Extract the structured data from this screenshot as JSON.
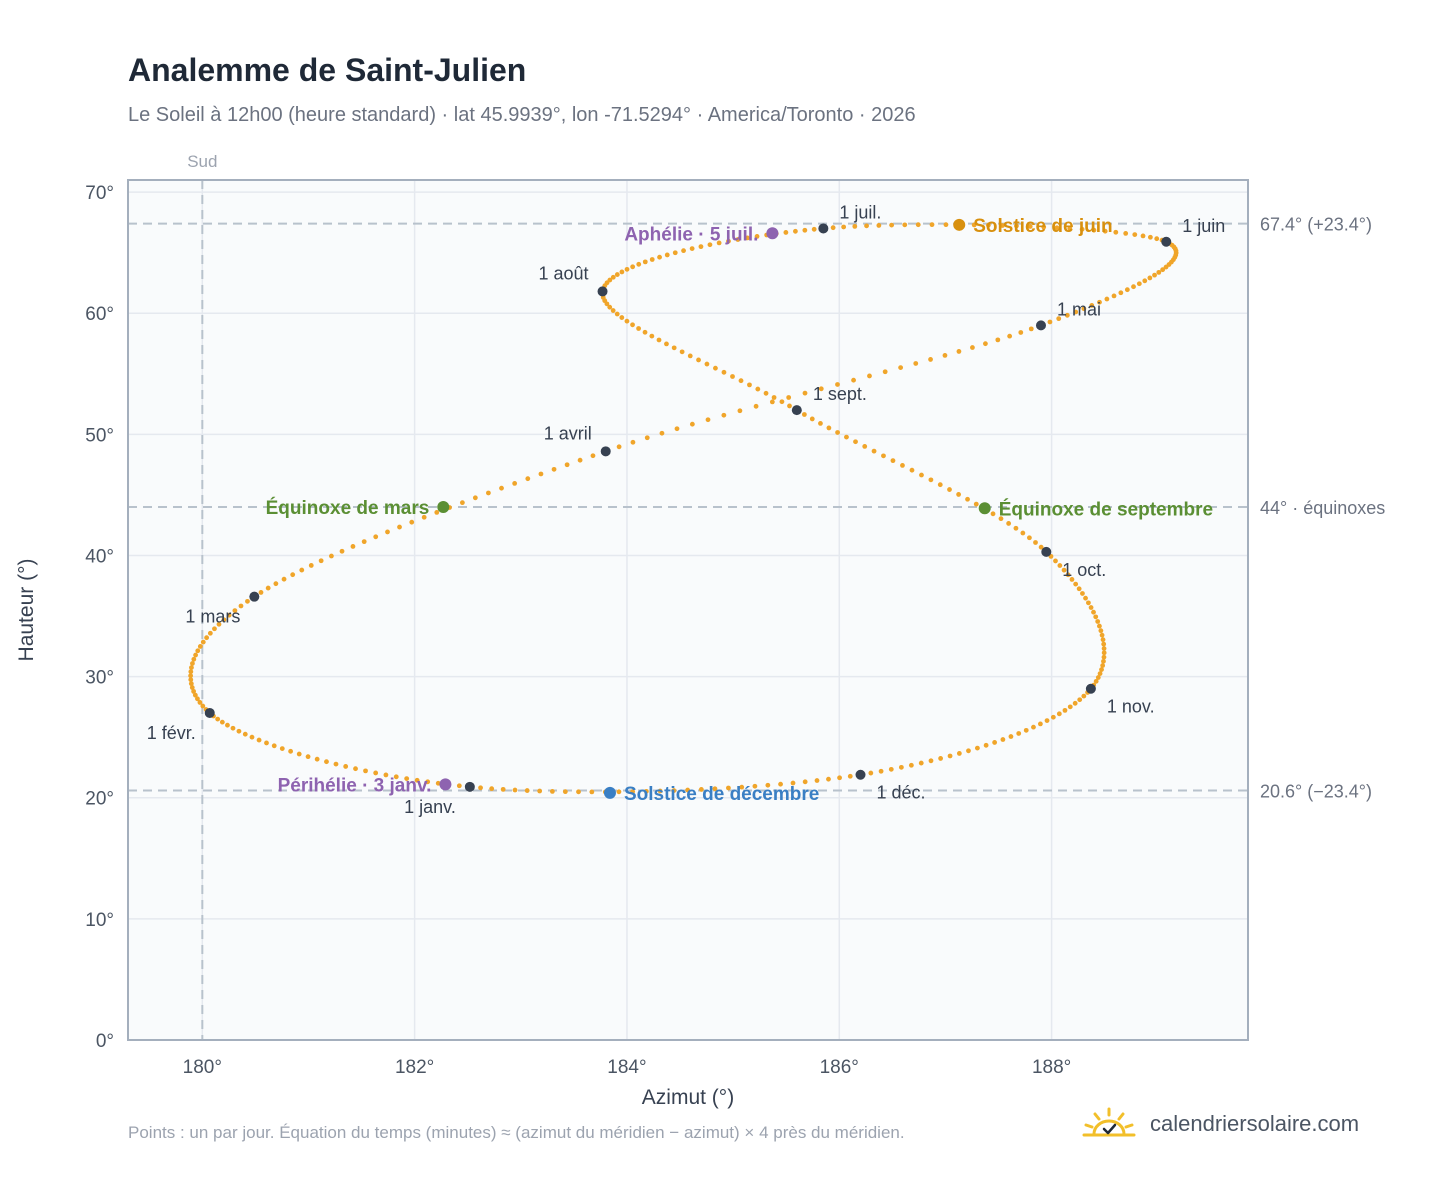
{
  "title": "Analemme de Saint-Julien",
  "subtitle": "Le Soleil à 12h00 (heure standard) · lat 45.9939°, lon -71.5294° · America/Toronto · 2026",
  "footnote": "Points : un par jour. Équation du temps (minutes) ≈ (azimut du méridien − azimut) × 4 près du méridien.",
  "brand": "calendriersolaire.com",
  "colors": {
    "curve": "#f0a52a",
    "month_marker": "#374151",
    "solstice_june": "#d8900e",
    "solstice_december": "#3a7fc4",
    "equinox": "#5b8f34",
    "apsis": "#8e63b0",
    "grid": "#e5e9ef",
    "reference": "#b8c2cc",
    "plot_bg": "#f9fbfc",
    "plot_border": "#a4afbd"
  },
  "chart_data": {
    "type": "scatter",
    "xlabel": "Azimut (°)",
    "ylabel": "Hauteur (°)",
    "xlim": [
      179.3,
      189.85
    ],
    "ylim": [
      0,
      71
    ],
    "x_ticks": [
      180,
      182,
      184,
      186,
      188
    ],
    "y_ticks": [
      0,
      10,
      20,
      30,
      40,
      50,
      60,
      70
    ],
    "x_tick_labels": [
      "180°",
      "182°",
      "184°",
      "186°",
      "188°"
    ],
    "y_tick_labels": [
      "0°",
      "10°",
      "20°",
      "30°",
      "40°",
      "50°",
      "60°",
      "70°"
    ],
    "grid": true,
    "south_line": {
      "x": 180,
      "label": "Sud"
    },
    "reference_lines": [
      {
        "y": 67.4,
        "label": "67.4° (+23.4°)"
      },
      {
        "y": 44,
        "label": "44° · équinoxes"
      },
      {
        "y": 20.6,
        "label": "20.6° (−23.4°)"
      }
    ],
    "daily_path": [
      {
        "day": 1,
        "az": 182.52,
        "alt": 20.9
      },
      {
        "day": 32,
        "az": 180.07,
        "alt": 27.0
      },
      {
        "day": 60,
        "az": 180.49,
        "alt": 36.6
      },
      {
        "day": 91,
        "az": 183.8,
        "alt": 48.6
      },
      {
        "day": 121,
        "az": 187.9,
        "alt": 59.0
      },
      {
        "day": 152,
        "az": 189.08,
        "alt": 65.9
      },
      {
        "day": 182,
        "az": 185.85,
        "alt": 67.0
      },
      {
        "day": 213,
        "az": 183.77,
        "alt": 61.8
      },
      {
        "day": 244,
        "az": 185.6,
        "alt": 52.0
      },
      {
        "day": 274,
        "az": 187.95,
        "alt": 40.3
      },
      {
        "day": 305,
        "az": 188.37,
        "alt": 29.0
      },
      {
        "day": 335,
        "az": 186.2,
        "alt": 21.9
      }
    ],
    "month_markers": [
      {
        "label": "1 janv.",
        "az": 182.52,
        "alt": 20.9,
        "anchor": "below-left"
      },
      {
        "label": "1 févr.",
        "az": 180.07,
        "alt": 27.0,
        "anchor": "below-left"
      },
      {
        "label": "1 mars",
        "az": 180.49,
        "alt": 36.6,
        "anchor": "below-left"
      },
      {
        "label": "1 avril",
        "az": 183.8,
        "alt": 48.6,
        "anchor": "above-left"
      },
      {
        "label": "1 mai",
        "az": 187.9,
        "alt": 59.0,
        "anchor": "above-right"
      },
      {
        "label": "1 juin",
        "az": 189.08,
        "alt": 65.9,
        "anchor": "above-right"
      },
      {
        "label": "1 juil.",
        "az": 185.85,
        "alt": 67.0,
        "anchor": "above-right"
      },
      {
        "label": "1 août",
        "az": 183.77,
        "alt": 61.8,
        "anchor": "above-left"
      },
      {
        "label": "1 sept.",
        "az": 185.6,
        "alt": 52.0,
        "anchor": "above-right"
      },
      {
        "label": "1 oct.",
        "az": 187.95,
        "alt": 40.3,
        "anchor": "below-right"
      },
      {
        "label": "1 nov.",
        "az": 188.37,
        "alt": 29.0,
        "anchor": "below-right"
      },
      {
        "label": "1 déc.",
        "az": 186.2,
        "alt": 21.9,
        "anchor": "below-right"
      }
    ],
    "events": [
      {
        "label": "Solstice de juin",
        "az": 187.13,
        "alt": 67.3,
        "color_key": "solstice_june",
        "anchor": "right"
      },
      {
        "label": "Solstice de décembre",
        "az": 183.84,
        "alt": 20.4,
        "color_key": "solstice_december",
        "anchor": "right"
      },
      {
        "label": "Équinoxe de mars",
        "az": 182.27,
        "alt": 44.0,
        "color_key": "equinox",
        "anchor": "left"
      },
      {
        "label": "Équinoxe de septembre",
        "az": 187.37,
        "alt": 43.9,
        "color_key": "equinox",
        "anchor": "right"
      },
      {
        "label": "Aphélie · 5 juil.",
        "az": 185.37,
        "alt": 66.6,
        "color_key": "apsis",
        "anchor": "left"
      },
      {
        "label": "Périhélie · 3 janv.",
        "az": 182.29,
        "alt": 21.1,
        "color_key": "apsis",
        "anchor": "left"
      }
    ]
  }
}
